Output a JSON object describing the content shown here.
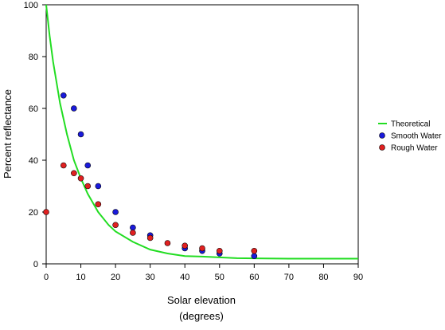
{
  "chart_data": {
    "type": "scatter",
    "xlabel": "Solar elevation",
    "xlabel_sub": "(degrees)",
    "ylabel": "Percent reflectance",
    "xlim": [
      0,
      90
    ],
    "ylim": [
      0,
      100
    ],
    "xticks": [
      0,
      10,
      20,
      30,
      40,
      50,
      60,
      70,
      80,
      90
    ],
    "yticks": [
      0,
      20,
      40,
      60,
      80,
      100
    ],
    "grid": false,
    "legend_position": "right",
    "series": [
      {
        "name": "Theoretical",
        "kind": "line",
        "color": "#22dd22",
        "x": [
          0,
          1,
          2,
          3,
          4,
          5,
          6,
          8,
          10,
          12,
          15,
          18,
          20,
          25,
          30,
          35,
          40,
          45,
          50,
          55,
          60,
          70,
          80,
          90
        ],
        "y": [
          100,
          88,
          78,
          70,
          62,
          56,
          50,
          40,
          33,
          27,
          20,
          15,
          12.5,
          8.5,
          5.5,
          4,
          3,
          2.8,
          2.5,
          2.2,
          2.1,
          2,
          2,
          2
        ]
      },
      {
        "name": "Smooth Water",
        "kind": "points",
        "color": "#1a1adb",
        "x": [
          5,
          8,
          10,
          12,
          15,
          20,
          25,
          30,
          40,
          45,
          50,
          60
        ],
        "y": [
          65,
          60,
          50,
          38,
          30,
          20,
          14,
          11,
          6,
          5,
          4,
          3
        ]
      },
      {
        "name": "Rough Water",
        "kind": "points",
        "color": "#e02020",
        "x": [
          0,
          5,
          8,
          10,
          12,
          15,
          20,
          25,
          30,
          35,
          40,
          45,
          50,
          60
        ],
        "y": [
          20,
          38,
          35,
          33,
          30,
          23,
          15,
          12,
          10,
          8,
          7,
          6,
          5,
          5
        ]
      }
    ]
  }
}
